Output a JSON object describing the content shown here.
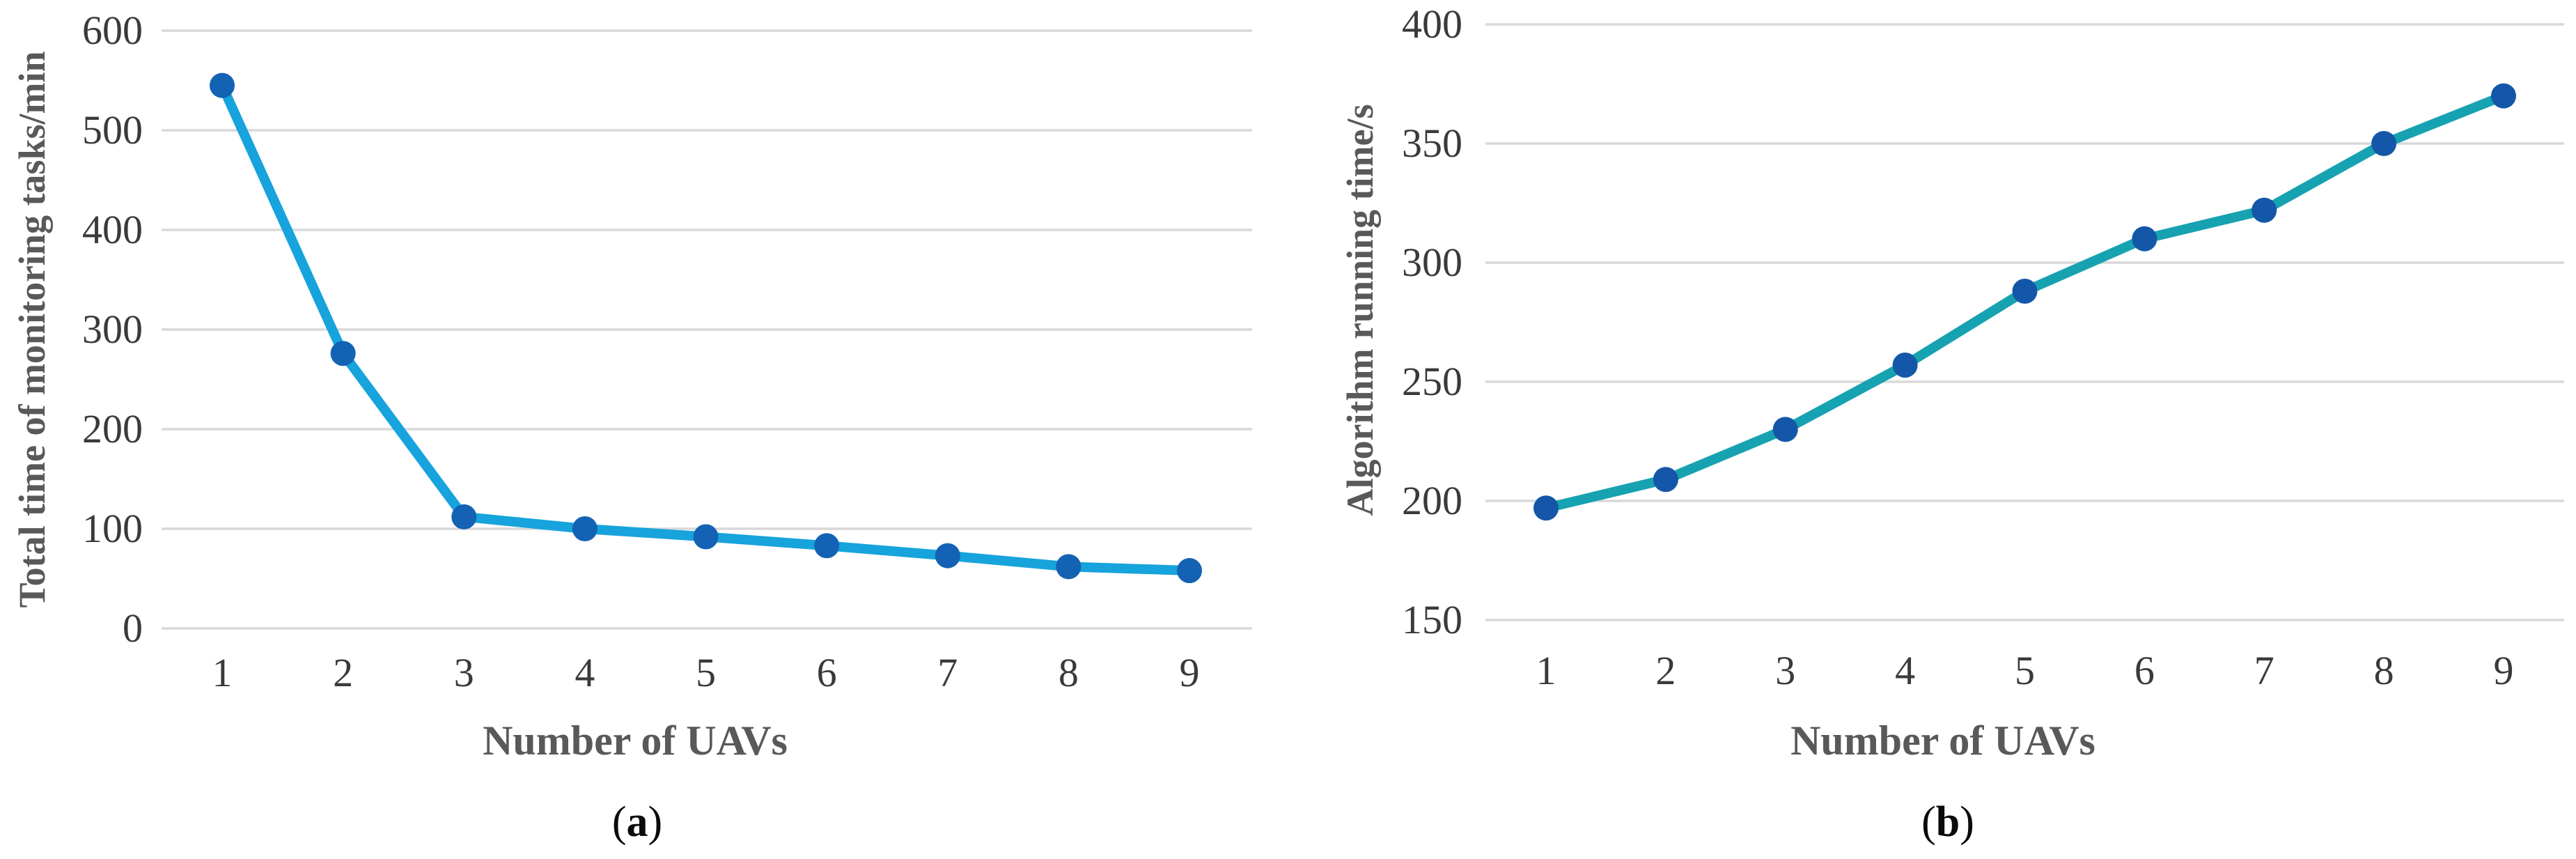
{
  "figure": {
    "captions": [
      {
        "open": "(",
        "letter": "a",
        "close": ")"
      },
      {
        "open": "(",
        "letter": "b",
        "close": ")"
      }
    ]
  },
  "chart_data": [
    {
      "type": "line",
      "panel": "a",
      "title": "",
      "xlabel": "Number of UAVs",
      "ylabel": "Total time of monitoring tasks/min",
      "x": [
        1,
        2,
        3,
        4,
        5,
        6,
        7,
        8,
        9
      ],
      "values": [
        545,
        276,
        112,
        100,
        92,
        83,
        73,
        62,
        58
      ],
      "ylim": [
        0,
        600
      ],
      "y_ticks": [
        0,
        100,
        200,
        300,
        400,
        500,
        600
      ],
      "grid": "horizontal",
      "legend": "none",
      "line_color": "#17a3dc",
      "marker_color": "#1362b4",
      "gridline_color": "#d9d9d9"
    },
    {
      "type": "line",
      "panel": "b",
      "title": "",
      "xlabel": "Number of UAVs",
      "ylabel": "Algorithm running time/s",
      "x": [
        1,
        2,
        3,
        4,
        5,
        6,
        7,
        8,
        9
      ],
      "values": [
        197,
        209,
        230,
        257,
        288,
        310,
        322,
        350,
        370
      ],
      "ylim": [
        150,
        400
      ],
      "y_ticks": [
        150,
        200,
        250,
        300,
        350,
        400
      ],
      "grid": "horizontal",
      "legend": "none",
      "line_color": "#17a2b2",
      "marker_color": "#1457a8",
      "gridline_color": "#d9d9d9"
    }
  ]
}
